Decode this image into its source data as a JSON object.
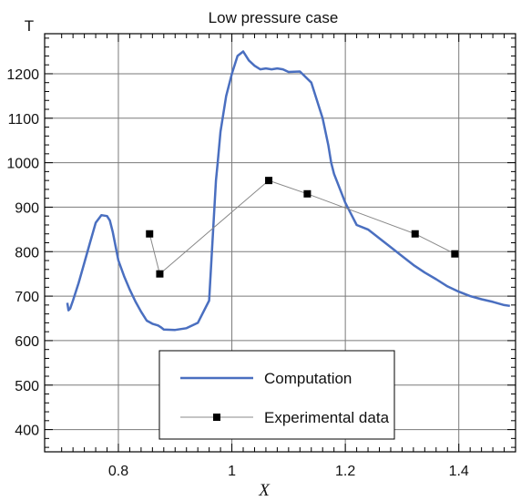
{
  "chart_data": {
    "type": "line",
    "title": "Low pressure case",
    "xlabel": "X",
    "ylabel": "T",
    "xlim": [
      0.67,
      1.5
    ],
    "ylim": [
      350,
      1290
    ],
    "x_ticks": [
      0.8,
      1,
      1.2,
      1.4
    ],
    "x_tick_labels": [
      "0.8",
      "1",
      "1.2",
      "1.4"
    ],
    "y_ticks": [
      400,
      500,
      600,
      700,
      800,
      900,
      1000,
      1100,
      1200
    ],
    "y_tick_labels": [
      "400",
      "500",
      "600",
      "700",
      "800",
      "900",
      "1000",
      "1100",
      "1200"
    ],
    "grid": true,
    "legend_position": "bottom-center",
    "series": [
      {
        "name": "Computation",
        "style": "line",
        "color": "#4a6fc0",
        "x": [
          0.71,
          0.712,
          0.715,
          0.72,
          0.73,
          0.74,
          0.75,
          0.76,
          0.77,
          0.78,
          0.785,
          0.79,
          0.8,
          0.81,
          0.82,
          0.83,
          0.84,
          0.85,
          0.86,
          0.87,
          0.875,
          0.88,
          0.9,
          0.92,
          0.94,
          0.96,
          0.968,
          0.972,
          0.975,
          0.98,
          0.99,
          1.0,
          1.01,
          1.02,
          1.03,
          1.04,
          1.05,
          1.06,
          1.07,
          1.08,
          1.09,
          1.1,
          1.12,
          1.14,
          1.16,
          1.17,
          1.175,
          1.18,
          1.2,
          1.22,
          1.24,
          1.25,
          1.26,
          1.28,
          1.3,
          1.32,
          1.34,
          1.36,
          1.38,
          1.4,
          1.42,
          1.44,
          1.46,
          1.48,
          1.49
        ],
        "y": [
          685,
          668,
          672,
          690,
          730,
          775,
          820,
          865,
          882,
          880,
          870,
          845,
          780,
          745,
          715,
          688,
          665,
          645,
          638,
          634,
          630,
          625,
          624,
          628,
          640,
          690,
          870,
          960,
          1000,
          1070,
          1150,
          1200,
          1240,
          1250,
          1230,
          1218,
          1210,
          1212,
          1210,
          1212,
          1210,
          1204,
          1205,
          1180,
          1100,
          1040,
          1000,
          975,
          910,
          860,
          850,
          840,
          830,
          810,
          790,
          770,
          753,
          738,
          722,
          710,
          700,
          693,
          687,
          680,
          678
        ]
      },
      {
        "name": "Experimental data",
        "style": "line-marker",
        "color": "#888888",
        "marker_color": "#000000",
        "x": [
          0.855,
          0.873,
          1.065,
          1.133,
          1.323,
          1.393
        ],
        "y": [
          840,
          750,
          960,
          930,
          840,
          795
        ]
      }
    ]
  }
}
